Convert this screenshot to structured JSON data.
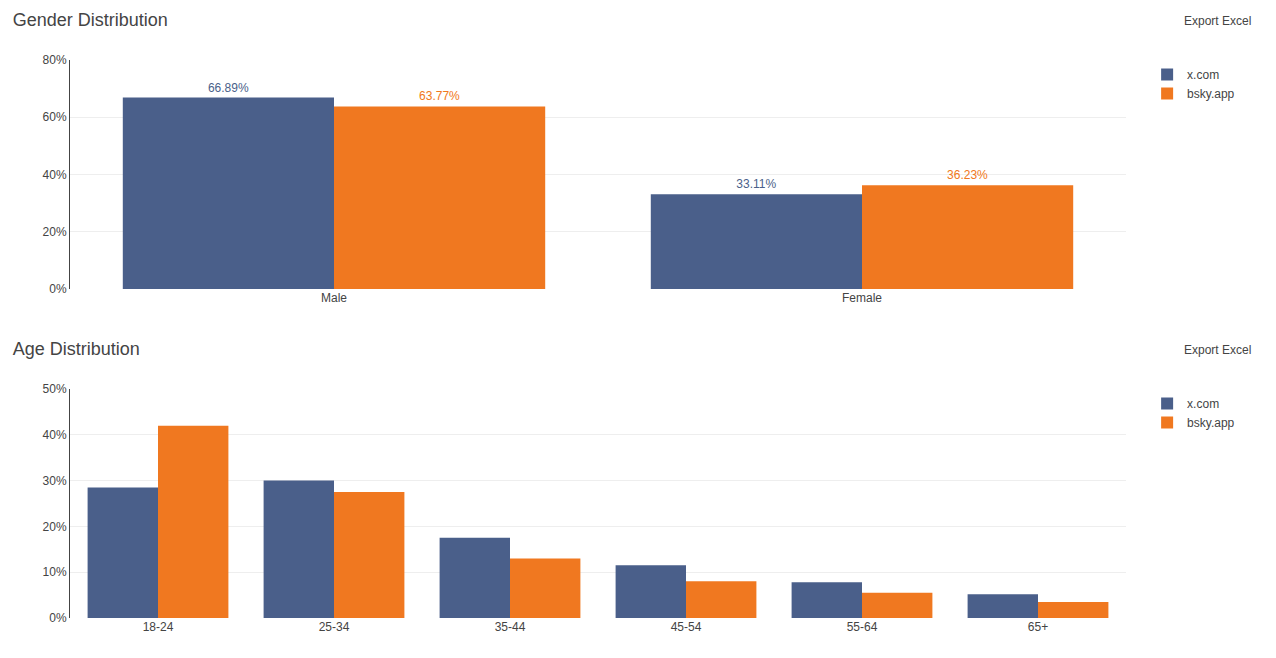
{
  "chart_data": [
    {
      "type": "bar",
      "title": "Gender Distribution",
      "annotations": [
        "Export Excel"
      ],
      "categories": [
        "Male",
        "Female"
      ],
      "series": [
        {
          "name": "x.com",
          "color": "#4a5f8a",
          "values": [
            66.89,
            33.11
          ],
          "value_labels": [
            "66.89%",
            "33.11%"
          ]
        },
        {
          "name": "bsky.app",
          "color": "#f07820",
          "values": [
            63.77,
            36.23
          ],
          "value_labels": [
            "63.77%",
            "36.23%"
          ]
        }
      ],
      "ylim": [
        0,
        80
      ],
      "yticks": [
        {
          "value": 0,
          "label": "0%"
        },
        {
          "value": 20,
          "label": "20%"
        },
        {
          "value": 40,
          "label": "40%"
        },
        {
          "value": 60,
          "label": "60%"
        },
        {
          "value": 80,
          "label": "80%"
        }
      ],
      "grid": true,
      "legend": "right",
      "data_labels": true
    },
    {
      "type": "bar",
      "title": "Age Distribution",
      "annotations": [
        "Export Excel"
      ],
      "categories": [
        "18-24",
        "25-34",
        "35-44",
        "45-54",
        "55-64",
        "65+"
      ],
      "series": [
        {
          "name": "x.com",
          "color": "#4a5f8a",
          "values": [
            28.5,
            30.0,
            17.5,
            11.5,
            7.8,
            5.2
          ]
        },
        {
          "name": "bsky.app",
          "color": "#f07820",
          "values": [
            42.0,
            27.5,
            13.0,
            8.0,
            5.5,
            3.5
          ]
        }
      ],
      "ylim": [
        0,
        50
      ],
      "yticks": [
        {
          "value": 0,
          "label": "0%"
        },
        {
          "value": 10,
          "label": "10%"
        },
        {
          "value": 20,
          "label": "20%"
        },
        {
          "value": 30,
          "label": "30%"
        },
        {
          "value": 40,
          "label": "40%"
        },
        {
          "value": 50,
          "label": "50%"
        }
      ],
      "grid": true,
      "legend": "right",
      "data_labels": false
    }
  ]
}
